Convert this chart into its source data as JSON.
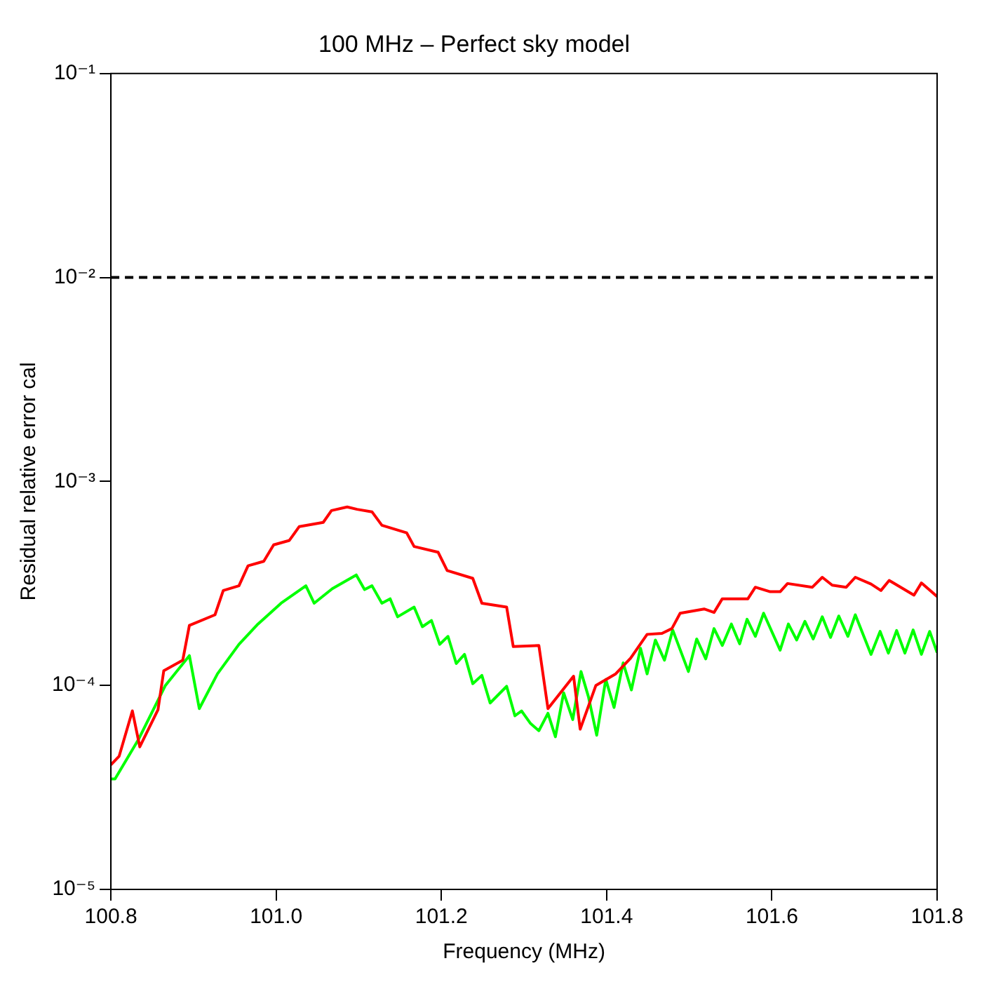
{
  "chart_data": {
    "type": "line",
    "title": "100 MHz – Perfect sky model",
    "xlabel": "Frequency (MHz)",
    "ylabel": "Residual relative error cal",
    "log": "y",
    "grid": false,
    "legend": false,
    "xlim": [
      100.8,
      101.8
    ],
    "xticks": [
      {
        "value": 100.8,
        "label": "100.8"
      },
      {
        "value": 101.0,
        "label": "101.0"
      },
      {
        "value": 101.2,
        "label": "101.2"
      },
      {
        "value": 101.4,
        "label": "101.4"
      },
      {
        "value": 101.6,
        "label": "101.6"
      },
      {
        "value": 101.8,
        "label": "101.8"
      }
    ],
    "ylim": [
      1e-05,
      0.1
    ],
    "yticks": [
      {
        "value": 1e-05,
        "label": "10⁻⁵"
      },
      {
        "value": 0.0001,
        "label": "10⁻⁴"
      },
      {
        "value": 0.001,
        "label": "10⁻³"
      },
      {
        "value": 0.01,
        "label": "10⁻²"
      },
      {
        "value": 0.1,
        "label": "10⁻¹"
      }
    ],
    "ref_lines": [
      {
        "axis": "y",
        "value": 0.01,
        "color": "#000000",
        "line_style": "dashed"
      }
    ],
    "series": [
      {
        "color": "#ff0000",
        "x": [
          100.8,
          100.81,
          100.826,
          100.835,
          100.857,
          100.864,
          100.887,
          100.895,
          100.926,
          100.936,
          100.955,
          100.966,
          100.985,
          100.997,
          101.016,
          101.028,
          101.057,
          101.067,
          101.086,
          101.098,
          101.116,
          101.128,
          101.158,
          101.167,
          101.196,
          101.207,
          101.238,
          101.249,
          101.279,
          101.287,
          101.318,
          101.329,
          101.36,
          101.368,
          101.387,
          101.411,
          101.429,
          101.449,
          101.467,
          101.479,
          101.489,
          101.518,
          101.53,
          101.54,
          101.571,
          101.58,
          101.598,
          101.61,
          101.619,
          101.649,
          101.661,
          101.673,
          101.69,
          101.701,
          101.72,
          101.732,
          101.742,
          101.772,
          101.781,
          101.8
        ],
        "values": [
          4.08e-05,
          4.5e-05,
          7.5e-05,
          5e-05,
          7.6e-05,
          0.000118,
          0.000133,
          0.000197,
          0.000222,
          0.000292,
          0.000308,
          0.000386,
          0.000406,
          0.000489,
          0.000514,
          0.000601,
          0.00063,
          0.00072,
          0.00075,
          0.00073,
          0.00071,
          0.00061,
          0.00056,
          0.00048,
          0.00045,
          0.000366,
          0.000335,
          0.000253,
          0.000242,
          0.000155,
          0.000157,
          7.7e-05,
          0.000111,
          6.1e-05,
          0.0001,
          0.000114,
          0.000136,
          0.000178,
          0.00018,
          0.00019,
          0.000226,
          0.000237,
          0.000228,
          0.000266,
          0.000266,
          0.000303,
          0.000288,
          0.000288,
          0.000316,
          0.000303,
          0.000339,
          0.00031,
          0.000303,
          0.000339,
          0.000314,
          0.000292,
          0.000327,
          0.000277,
          0.000318,
          0.000273
        ]
      },
      {
        "color": "#00ff00",
        "x": [
          100.8,
          100.805,
          100.833,
          100.866,
          100.895,
          100.907,
          100.929,
          100.955,
          100.978,
          101.006,
          101.036,
          101.046,
          101.068,
          101.097,
          101.107,
          101.116,
          101.128,
          101.138,
          101.147,
          101.167,
          101.177,
          101.188,
          101.198,
          101.208,
          101.218,
          101.228,
          101.238,
          101.249,
          101.259,
          101.279,
          101.289,
          101.297,
          101.308,
          101.318,
          101.329,
          101.338,
          101.348,
          101.359,
          101.369,
          101.378,
          101.388,
          101.399,
          101.409,
          101.42,
          101.43,
          101.441,
          101.449,
          101.459,
          101.47,
          101.48,
          101.499,
          101.509,
          101.52,
          101.53,
          101.54,
          101.551,
          101.561,
          101.57,
          101.58,
          101.59,
          101.61,
          101.62,
          101.63,
          101.64,
          101.65,
          101.661,
          101.671,
          101.681,
          101.692,
          101.701,
          101.72,
          101.731,
          101.741,
          101.751,
          101.761,
          101.771,
          101.781,
          101.791,
          101.8
        ],
        "values": [
          3.48e-05,
          3.48e-05,
          5.4e-05,
          0.0001,
          0.00014,
          7.7e-05,
          0.000114,
          0.000159,
          0.0002,
          0.000253,
          0.000308,
          0.000253,
          0.000298,
          0.000348,
          0.000295,
          0.000308,
          0.000253,
          0.000266,
          0.000217,
          0.000242,
          0.000194,
          0.000208,
          0.000159,
          0.000174,
          0.000128,
          0.000142,
          0.000102,
          0.000112,
          8.2e-05,
          9.9e-05,
          7.1e-05,
          7.5e-05,
          6.5e-05,
          6e-05,
          7.3e-05,
          5.6e-05,
          9.2e-05,
          6.8e-05,
          0.000117,
          8.8e-05,
          5.7e-05,
          0.000107,
          7.8e-05,
          0.000129,
          9.5e-05,
          0.000152,
          0.000114,
          0.000167,
          0.000133,
          0.000187,
          0.000117,
          0.000169,
          0.000135,
          0.00019,
          0.000157,
          0.0002,
          0.00016,
          0.000211,
          0.000174,
          0.000226,
          0.000149,
          0.0002,
          0.000167,
          0.000206,
          0.000169,
          0.000217,
          0.000172,
          0.000219,
          0.000174,
          0.000222,
          0.000142,
          0.000184,
          0.000144,
          0.000186,
          0.000144,
          0.000187,
          0.000142,
          0.000184,
          0.000145
        ]
      }
    ]
  }
}
